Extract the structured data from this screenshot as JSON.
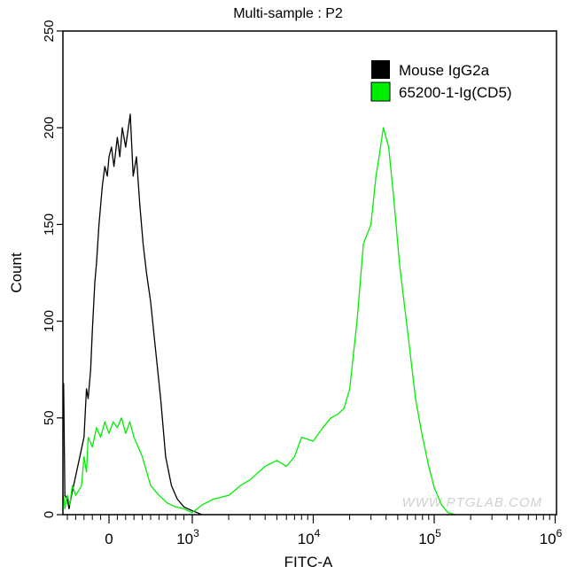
{
  "chart_data": {
    "type": "line",
    "title": "Multi-sample : P2",
    "xlabel": "FITC-A",
    "ylabel": "Count",
    "x_scale": "biexponential",
    "xlim": [
      -550,
      1000000
    ],
    "ylim": [
      0,
      250
    ],
    "yticks": [
      0,
      50,
      100,
      150,
      200,
      250
    ],
    "xticks": [
      {
        "value": 0,
        "label": "0",
        "exp": ""
      },
      {
        "value": 1000,
        "label": "10",
        "exp": "3"
      },
      {
        "value": 10000,
        "label": "10",
        "exp": "4"
      },
      {
        "value": 100000,
        "label": "10",
        "exp": "5"
      },
      {
        "value": 1000000,
        "label": "10",
        "exp": "6"
      }
    ],
    "grid": false,
    "legend_position": "top-right",
    "watermark": "WWW.PTGLAB.COM",
    "series": [
      {
        "name": "Mouse IgG2a",
        "color": "#000000",
        "points": [
          [
            -545,
            68
          ],
          [
            -530,
            10
          ],
          [
            -500,
            8
          ],
          [
            -480,
            3
          ],
          [
            -450,
            10
          ],
          [
            -400,
            20
          ],
          [
            -350,
            30
          ],
          [
            -300,
            40
          ],
          [
            -270,
            65
          ],
          [
            -250,
            60
          ],
          [
            -220,
            75
          ],
          [
            -200,
            95
          ],
          [
            -170,
            120
          ],
          [
            -150,
            130
          ],
          [
            -120,
            150
          ],
          [
            -100,
            160
          ],
          [
            -80,
            170
          ],
          [
            -50,
            180
          ],
          [
            -20,
            175
          ],
          [
            0,
            185
          ],
          [
            30,
            190
          ],
          [
            60,
            180
          ],
          [
            100,
            195
          ],
          [
            130,
            185
          ],
          [
            160,
            200
          ],
          [
            200,
            190
          ],
          [
            255,
            207
          ],
          [
            290,
            175
          ],
          [
            330,
            185
          ],
          [
            370,
            160
          ],
          [
            410,
            140
          ],
          [
            450,
            125
          ],
          [
            500,
            110
          ],
          [
            560,
            85
          ],
          [
            620,
            60
          ],
          [
            680,
            30
          ],
          [
            750,
            15
          ],
          [
            820,
            8
          ],
          [
            900,
            4
          ],
          [
            1000,
            2
          ],
          [
            1100,
            1
          ],
          [
            1200,
            0
          ]
        ]
      },
      {
        "name": "65200-1-Ig(CD5)",
        "color": "#00ee00",
        "points": [
          [
            -545,
            10
          ],
          [
            -530,
            3
          ],
          [
            -500,
            10
          ],
          [
            -470,
            5
          ],
          [
            -440,
            15
          ],
          [
            -400,
            10
          ],
          [
            -370,
            12
          ],
          [
            -330,
            15
          ],
          [
            -300,
            30
          ],
          [
            -270,
            22
          ],
          [
            -250,
            40
          ],
          [
            -200,
            35
          ],
          [
            -150,
            45
          ],
          [
            -100,
            40
          ],
          [
            -50,
            48
          ],
          [
            0,
            42
          ],
          [
            50,
            48
          ],
          [
            100,
            45
          ],
          [
            150,
            50
          ],
          [
            200,
            42
          ],
          [
            250,
            48
          ],
          [
            300,
            40
          ],
          [
            400,
            30
          ],
          [
            500,
            15
          ],
          [
            600,
            10
          ],
          [
            700,
            6
          ],
          [
            800,
            4
          ],
          [
            900,
            3
          ],
          [
            1000,
            1
          ],
          [
            1200,
            5
          ],
          [
            1500,
            8
          ],
          [
            2000,
            10
          ],
          [
            2500,
            15
          ],
          [
            3000,
            18
          ],
          [
            4000,
            25
          ],
          [
            5000,
            28
          ],
          [
            6000,
            25
          ],
          [
            7000,
            30
          ],
          [
            8000,
            40
          ],
          [
            10000,
            38
          ],
          [
            12000,
            45
          ],
          [
            14000,
            50
          ],
          [
            16000,
            52
          ],
          [
            18000,
            55
          ],
          [
            20000,
            65
          ],
          [
            23000,
            100
          ],
          [
            26000,
            140
          ],
          [
            30000,
            150
          ],
          [
            33000,
            175
          ],
          [
            35000,
            185
          ],
          [
            38000,
            200
          ],
          [
            42000,
            190
          ],
          [
            46000,
            165
          ],
          [
            52000,
            128
          ],
          [
            61000,
            92
          ],
          [
            70000,
            60
          ],
          [
            79000,
            42
          ],
          [
            90000,
            25
          ],
          [
            100000,
            14
          ],
          [
            115000,
            5
          ],
          [
            130000,
            1
          ],
          [
            150000,
            0
          ]
        ]
      }
    ]
  }
}
